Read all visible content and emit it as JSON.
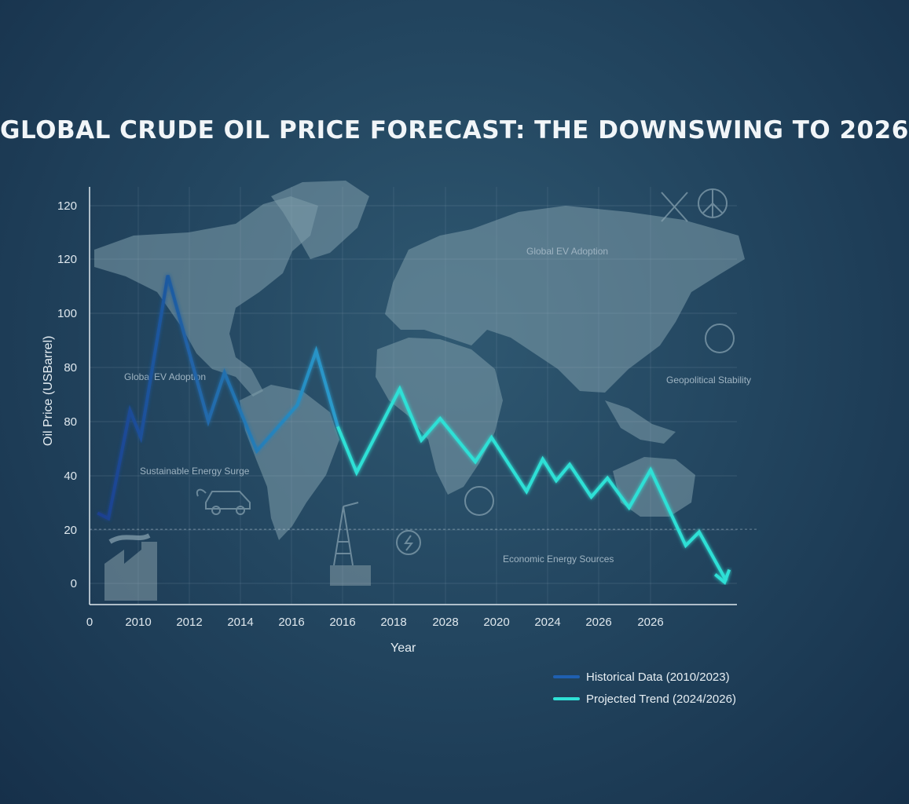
{
  "colors": {
    "historical": "#1f5fb0",
    "projected": "#2fe0d6",
    "background": "#234660",
    "map": "#7f9eab"
  },
  "chart_data": {
    "type": "line",
    "title": "GLOBAL CRUDE OIL PRICE FORECAST: THE DOWNSWING TO 2026",
    "xlabel": "Year",
    "ylabel": "Oil Price (USBarrel)",
    "x_tick_labels": [
      "0",
      "2010",
      "2012",
      "2014",
      "2016",
      "2016",
      "2018",
      "2028",
      "2020",
      "2024",
      "2026",
      "2026"
    ],
    "y_tick_labels": [
      "0",
      "20",
      "40",
      "80",
      "80",
      "100",
      "120",
      "120"
    ],
    "grid": true,
    "reference_line_y": 20,
    "legend_position": "bottom-right",
    "series": [
      {
        "name": "Historical Data (2010/2023)",
        "color": "#1f5fb0",
        "points": [
          {
            "x": 2009.3,
            "y": 26
          },
          {
            "x": 2009.7,
            "y": 24
          },
          {
            "x": 2010.5,
            "y": 64
          },
          {
            "x": 2010.9,
            "y": 54
          },
          {
            "x": 2011.9,
            "y": 114
          },
          {
            "x": 2013.4,
            "y": 60
          },
          {
            "x": 2014.0,
            "y": 78
          },
          {
            "x": 2015.2,
            "y": 49
          },
          {
            "x": 2016.7,
            "y": 66
          },
          {
            "x": 2017.4,
            "y": 86
          },
          {
            "x": 2018.2,
            "y": 58
          }
        ]
      },
      {
        "name": "Projected Trend (2024/2026)",
        "color": "#2fe0d6",
        "points": [
          {
            "x": 2018.2,
            "y": 58
          },
          {
            "x": 2018.9,
            "y": 41
          },
          {
            "x": 2020.5,
            "y": 72
          },
          {
            "x": 2021.3,
            "y": 53
          },
          {
            "x": 2022.0,
            "y": 61
          },
          {
            "x": 2023.3,
            "y": 45
          },
          {
            "x": 2023.9,
            "y": 54
          },
          {
            "x": 2025.2,
            "y": 34
          },
          {
            "x": 2025.8,
            "y": 46
          },
          {
            "x": 2026.3,
            "y": 38
          },
          {
            "x": 2026.8,
            "y": 44
          },
          {
            "x": 2027.6,
            "y": 32
          },
          {
            "x": 2028.2,
            "y": 39
          },
          {
            "x": 2029.0,
            "y": 28
          },
          {
            "x": 2029.8,
            "y": 42
          },
          {
            "x": 2031.1,
            "y": 14
          },
          {
            "x": 2031.6,
            "y": 19
          },
          {
            "x": 2032.6,
            "y": 1
          }
        ]
      }
    ],
    "annotations": [
      "Global EV Adoption",
      "Global EV Adoption",
      "Geopolitical Stability",
      "Sustainable Energy Surge",
      "Economic Energy Sources"
    ]
  }
}
